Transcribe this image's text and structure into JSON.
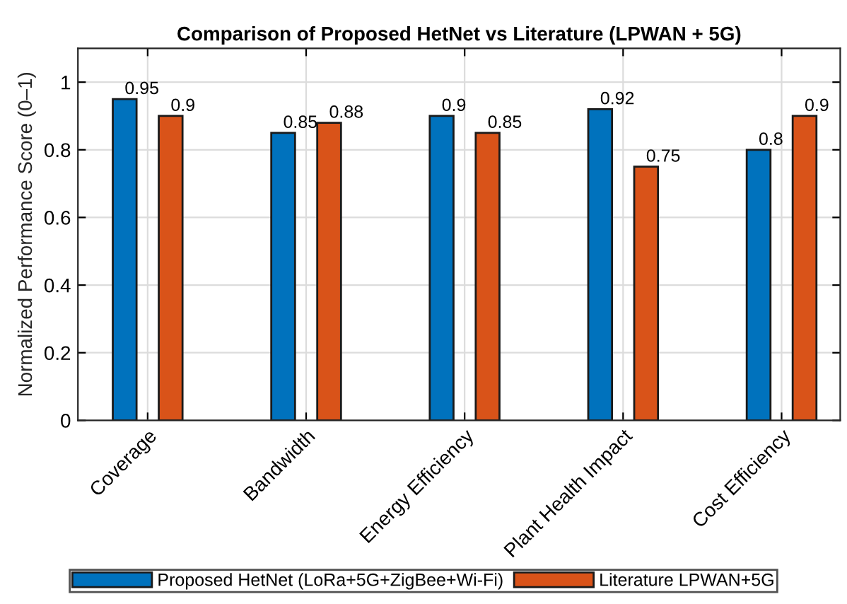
{
  "chart_data": {
    "type": "bar",
    "title": "Comparison of Proposed HetNet vs Literature (LPWAN + 5G)",
    "ylabel": "Normalized Performance Score (0–1)",
    "categories": [
      "Coverage",
      "Bandwidth",
      "Energy Efficiency",
      "Plant Health Impact",
      "Cost Efficiency"
    ],
    "series": [
      {
        "name": "Proposed HetNet (LoRa+5G+ZigBee+Wi-Fi)",
        "color": "#0072bd",
        "values": [
          0.95,
          0.85,
          0.9,
          0.92,
          0.8
        ]
      },
      {
        "name": "Literature LPWAN+5G",
        "color": "#d95319",
        "values": [
          0.9,
          0.88,
          0.85,
          0.75,
          0.9
        ]
      }
    ],
    "ylim": [
      0,
      1.1
    ],
    "yticks": [
      0,
      0.2,
      0.4,
      0.6,
      0.8,
      1
    ],
    "grid": true,
    "legend": "bottom",
    "data_labels": true
  }
}
